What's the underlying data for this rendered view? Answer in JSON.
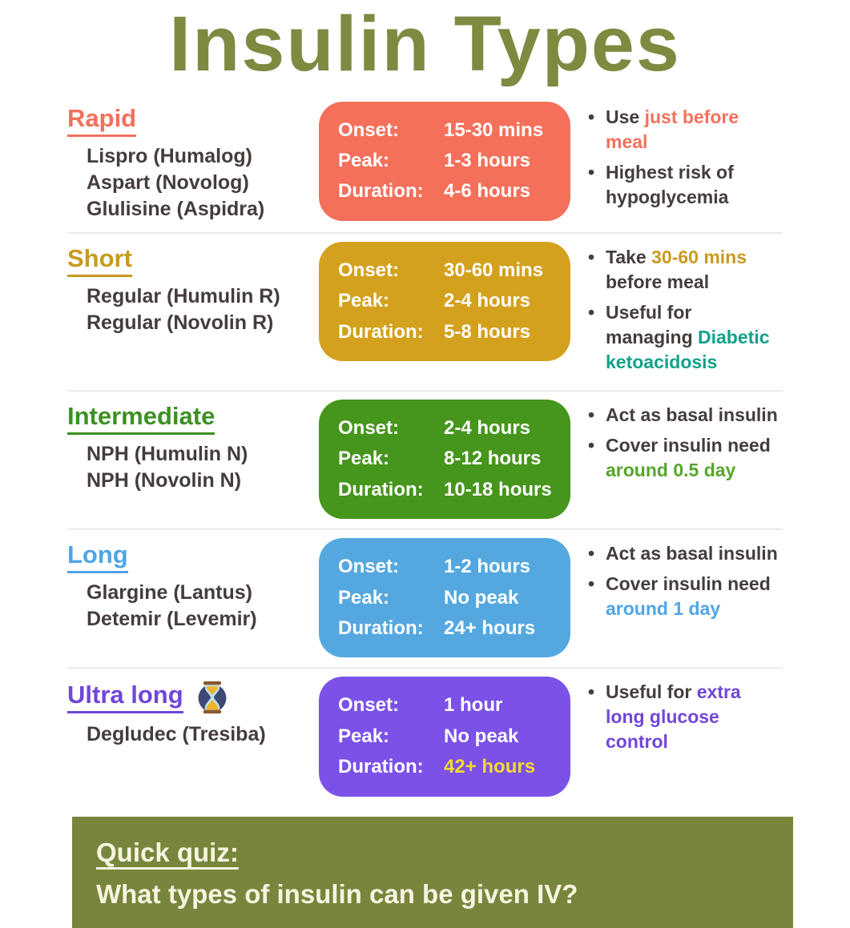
{
  "title": "Insulin Types",
  "colors": {
    "title_olive": "#7c8b40",
    "dark_text": "#453c3c",
    "divider": "#eceae8",
    "banner_bg": "#78863d",
    "banner_text": "#f7f4e1"
  },
  "rows": [
    {
      "id": "rapid",
      "heading": "Rapid",
      "heading_color": "#f2705c",
      "card_color": "#f4705b",
      "drugs": [
        "Lispro (Humalog)",
        "Aspart (Novolog)",
        "Glulisine (Aspidra)"
      ],
      "card": [
        {
          "label": "Onset:",
          "value": "15-30 mins"
        },
        {
          "label": "Peak:",
          "value": "1-3 hours"
        },
        {
          "label": "Duration:",
          "value": "4-6 hours"
        }
      ],
      "notes": [
        [
          {
            "text": "Use "
          },
          {
            "text": "just before meal",
            "color": "#f4705b"
          }
        ],
        [
          {
            "text": "Highest risk of hypoglycemia"
          }
        ]
      ]
    },
    {
      "id": "short",
      "heading": "Short",
      "heading_color": "#c89a1e",
      "card_color": "#d4a11e",
      "drugs": [
        "Regular (Humulin R)",
        "Regular (Novolin R)"
      ],
      "card": [
        {
          "label": "Onset:",
          "value": "30-60 mins"
        },
        {
          "label": "Peak:",
          "value": "2-4 hours"
        },
        {
          "label": "Duration:",
          "value": "5-8 hours"
        }
      ],
      "notes": [
        [
          {
            "text": "Take "
          },
          {
            "text": "30-60 mins",
            "color": "#c89a1e"
          },
          {
            "text": " before meal"
          }
        ],
        [
          {
            "text": "Useful for managing "
          },
          {
            "text": "Diabetic ketoacidosis",
            "color": "#12a189"
          }
        ]
      ]
    },
    {
      "id": "intermediate",
      "heading": "Intermediate",
      "heading_color": "#3c9023",
      "card_color": "#46951c",
      "drugs": [
        "NPH (Humulin N)",
        "NPH (Novolin N)"
      ],
      "card": [
        {
          "label": "Onset:",
          "value": "2-4 hours"
        },
        {
          "label": "Peak:",
          "value": "8-12 hours"
        },
        {
          "label": "Duration:",
          "value": "10-18 hours"
        }
      ],
      "notes": [
        [
          {
            "text": "Act as basal insulin"
          }
        ],
        [
          {
            "text": "Cover insulin need "
          },
          {
            "text": "around 0.5 day",
            "color": "#55a62b"
          }
        ]
      ]
    },
    {
      "id": "long",
      "heading": "Long",
      "heading_color": "#4fa5e5",
      "card_color": "#55a8df",
      "drugs": [
        "Glargine (Lantus)",
        "Detemir (Levemir)"
      ],
      "card": [
        {
          "label": "Onset:",
          "value": "1-2 hours"
        },
        {
          "label": "Peak:",
          "value": "No peak"
        },
        {
          "label": "Duration:",
          "value": "24+ hours"
        }
      ],
      "notes": [
        [
          {
            "text": "Act as basal insulin"
          }
        ],
        [
          {
            "text": "Cover insulin need "
          },
          {
            "text": "around 1 day",
            "color": "#4fa5e5"
          }
        ]
      ]
    },
    {
      "id": "ultra-long",
      "heading": "Ultra long",
      "heading_color": "#7146d9",
      "card_color": "#7b51e8",
      "icon": "hourglass",
      "drugs": [
        "Degludec (Tresiba)"
      ],
      "card": [
        {
          "label": "Onset:",
          "value": "1 hour"
        },
        {
          "label": "Peak:",
          "value": "No peak"
        },
        {
          "label": "Duration:",
          "value": "42+ hours",
          "value_color": "#f5da2b"
        }
      ],
      "notes": [
        [
          {
            "text": "Useful for "
          },
          {
            "text": "extra long glucose control",
            "color": "#7146d9"
          }
        ]
      ]
    }
  ],
  "quiz": {
    "heading": "Quick quiz:",
    "question": "What types of insulin can be given IV?"
  }
}
